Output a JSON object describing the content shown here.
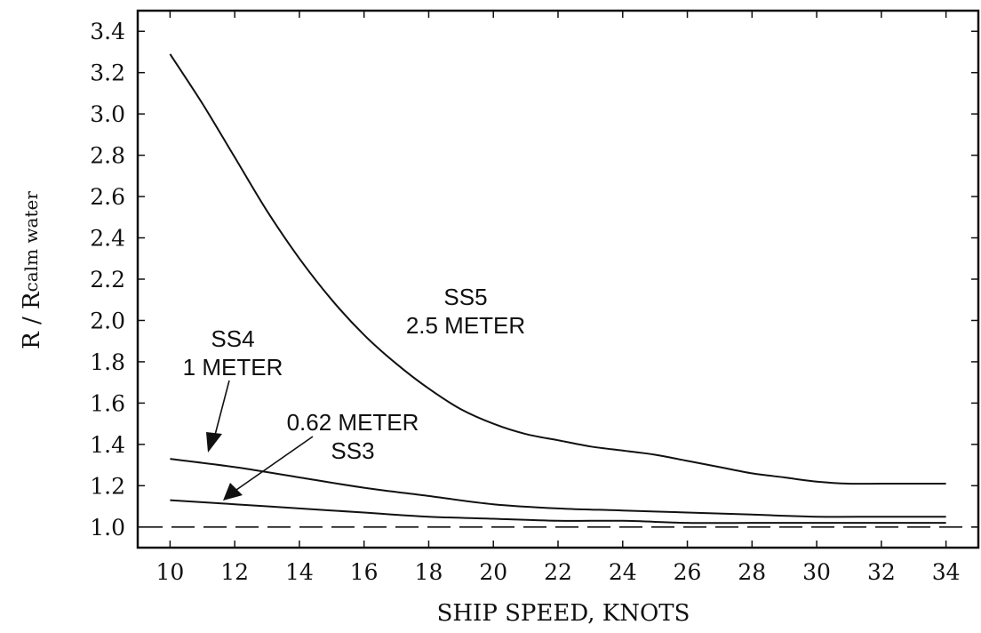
{
  "chart_data": {
    "type": "line",
    "xlabel": "SHIP SPEED, KNOTS",
    "ylabel_main": "R / R",
    "ylabel_sub": "calm water",
    "xlim": [
      9,
      35
    ],
    "ylim": [
      0.9,
      3.5
    ],
    "xticks": [
      10,
      12,
      14,
      16,
      18,
      20,
      22,
      24,
      26,
      28,
      30,
      32,
      34
    ],
    "yticks": [
      "1.0",
      "1.2",
      "1.4",
      "1.6",
      "1.8",
      "2.0",
      "2.2",
      "2.4",
      "2.6",
      "2.8",
      "3.0",
      "3.2",
      "3.4"
    ],
    "grid": false,
    "reference_line": {
      "y": 1.0,
      "style": "dashed"
    },
    "series": [
      {
        "x": [
          10,
          11,
          12,
          13,
          14,
          15,
          16,
          17,
          18,
          19,
          20,
          21,
          22,
          23,
          24,
          25,
          26,
          27,
          28,
          29,
          30,
          31,
          32,
          33,
          34
        ],
        "values": [
          3.29,
          3.05,
          2.79,
          2.53,
          2.3,
          2.1,
          1.93,
          1.79,
          1.67,
          1.57,
          1.5,
          1.45,
          1.42,
          1.39,
          1.37,
          1.35,
          1.32,
          1.29,
          1.26,
          1.24,
          1.22,
          1.21,
          1.21,
          1.21,
          1.21
        ]
      },
      {
        "x": [
          10,
          12,
          14,
          16,
          18,
          20,
          22,
          24,
          26,
          28,
          30,
          32,
          34
        ],
        "values": [
          1.33,
          1.29,
          1.24,
          1.19,
          1.15,
          1.11,
          1.09,
          1.08,
          1.07,
          1.06,
          1.05,
          1.05,
          1.05
        ]
      },
      {
        "x": [
          10,
          12,
          14,
          16,
          18,
          20,
          22,
          24,
          26,
          28,
          30,
          32,
          34
        ],
        "values": [
          1.13,
          1.11,
          1.09,
          1.07,
          1.05,
          1.04,
          1.03,
          1.03,
          1.02,
          1.02,
          1.02,
          1.02,
          1.02
        ]
      }
    ],
    "annotations": [
      {
        "lines": [
          "SS5",
          "2.5 METER"
        ]
      },
      {
        "lines": [
          "SS4",
          "1 METER"
        ]
      },
      {
        "lines": [
          "0.62 METER",
          "SS3"
        ]
      }
    ]
  }
}
